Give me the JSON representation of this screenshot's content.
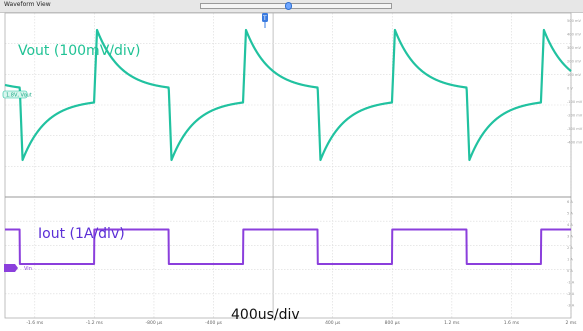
{
  "window": {
    "title": "Waveform View"
  },
  "colors": {
    "vout_trace": "#21c2a0",
    "iout_trace": "#8b3fdc",
    "vout_label": "#21c295",
    "iout_label": "#5b2fd6",
    "grid": "#dadada"
  },
  "annotations": {
    "vout": "Vout (100mV/div)",
    "iout": "Iout (1A/div)",
    "timebase": "400us/div"
  },
  "channels": {
    "vout_marker": "1.8V, Vout",
    "iout_marker": "Vin",
    "cursor_marker": "T"
  },
  "time_ticks": [
    "-1.6 ms",
    "-1.2 ms",
    "-800 µs",
    "-400 µs",
    "0 s",
    "400 µs",
    "800 µs",
    "1.2 ms",
    "1.6 ms",
    "2 ms"
  ],
  "right_ticks_top": [
    "500 mV",
    "400 mV",
    "300 mV",
    "200 mV",
    "100 mV",
    "0 V",
    "-100 mV",
    "-200 mV",
    "-300 mV",
    "-400 mV"
  ],
  "right_ticks_bottom": [
    "6 A",
    "5 A",
    "4 A",
    "3 A",
    "2 A",
    "1 A",
    "0 A",
    "-1 A",
    "-2 A",
    "-3 A"
  ],
  "waveform": {
    "period_us": 1000,
    "duty_fraction": 0.5,
    "first_rise_us": -1200,
    "iout_high_A": 3.5,
    "iout_low_A": 0.05,
    "vout_overshoot_mV": 290,
    "vout_undershoot_mV": -290,
    "vout_settle_mV": 20
  }
}
